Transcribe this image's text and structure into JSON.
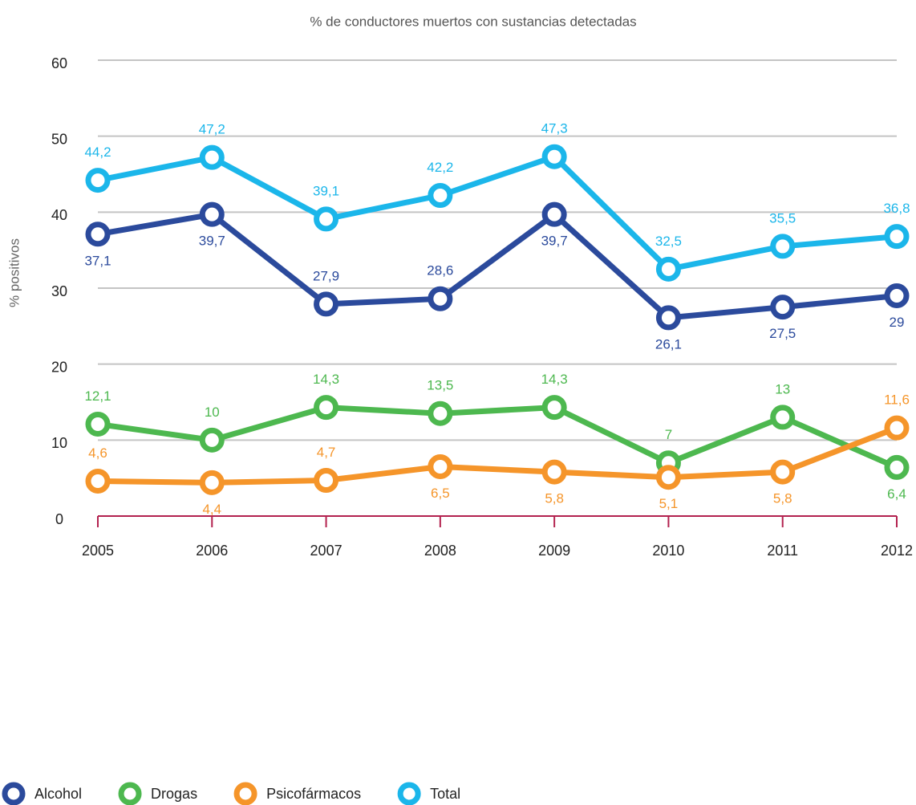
{
  "chart_data": {
    "type": "line",
    "title": "% de conductores muertos con sustancias detectadas",
    "y_label": "% positivos",
    "categories": [
      "2005",
      "2006",
      "2007",
      "2008",
      "2009",
      "2010",
      "2011",
      "2012"
    ],
    "series": [
      {
        "name": "Alcohol",
        "color": "#2b4a9c",
        "values": [
          37.1,
          39.7,
          27.9,
          28.6,
          39.7,
          26.1,
          27.5,
          29
        ],
        "value_labels": [
          "37,1",
          "39,7",
          "27,9",
          "28,6",
          "39,7",
          "26,1",
          "27,5",
          "29"
        ]
      },
      {
        "name": "Drogas",
        "color": "#4db84f",
        "values": [
          12.1,
          10,
          14.3,
          13.5,
          14.3,
          7,
          13,
          6.4
        ],
        "value_labels": [
          "12,1",
          "10",
          "14,3",
          "13,5",
          "14,3",
          "7",
          "13",
          "6,4"
        ]
      },
      {
        "name": "Psicofármacos",
        "color": "#f5952a",
        "values": [
          4.6,
          4.4,
          4.7,
          6.5,
          5.8,
          5.1,
          5.8,
          11.6
        ],
        "value_labels": [
          "4,6",
          "4,4",
          "4,7",
          "6,5",
          "5,8",
          "5,1",
          "5,8",
          "11,6"
        ]
      },
      {
        "name": "Total",
        "color": "#1bb6ea",
        "values": [
          44.2,
          47.2,
          39.1,
          42.2,
          47.3,
          32.5,
          35.5,
          36.8
        ],
        "value_labels": [
          "44,2",
          "47,2",
          "39,1",
          "42,2",
          "47,3",
          "32,5",
          "35,5",
          "36,8"
        ]
      }
    ],
    "ylim": [
      0,
      60
    ],
    "yticks": [
      0,
      10,
      20,
      30,
      40,
      50,
      60
    ],
    "grid": true,
    "legend": "bottom-left"
  }
}
